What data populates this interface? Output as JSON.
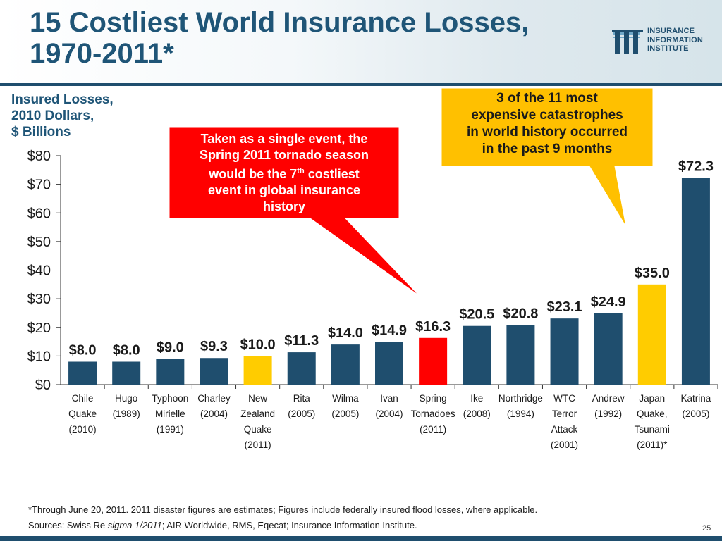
{
  "slide": {
    "title_line1": "15 Costliest World Insurance Losses,",
    "title_line2": "1970-2011*",
    "page_number": "25"
  },
  "logo": {
    "line1": "INSURANCE",
    "line2": "INFORMATION",
    "line3": "INSTITUTE"
  },
  "chart_data": {
    "type": "bar",
    "ylabel_lines": [
      "Insured Losses,",
      "2010 Dollars,",
      "$ Billions"
    ],
    "ylim": [
      0,
      80
    ],
    "yticks": [
      "$0",
      "$10",
      "$20",
      "$30",
      "$40",
      "$50",
      "$60",
      "$70",
      "$80"
    ],
    "categories": [
      [
        "Chile",
        "Quake",
        "(2010)"
      ],
      [
        "Hugo",
        "(1989)"
      ],
      [
        "Typhoon",
        "Mirielle",
        "(1991)"
      ],
      [
        "Charley",
        "(2004)"
      ],
      [
        "New",
        "Zealand",
        "Quake",
        "(2011)"
      ],
      [
        "Rita",
        "(2005)"
      ],
      [
        "Wilma",
        "(2005)"
      ],
      [
        "Ivan",
        "(2004)"
      ],
      [
        "Spring",
        "Tornadoes",
        "(2011)"
      ],
      [
        "Ike",
        "(2008)"
      ],
      [
        "Northridge",
        "(1994)"
      ],
      [
        "WTC",
        "Terror",
        "Attack",
        "(2001)"
      ],
      [
        "Andrew",
        "(1992)"
      ],
      [
        "Japan",
        "Quake,",
        "Tsunami",
        "(2011)*"
      ],
      [
        "Katrina",
        "(2005)"
      ]
    ],
    "values": [
      8.0,
      8.0,
      9.0,
      9.3,
      10.0,
      11.3,
      14.0,
      14.9,
      16.3,
      20.5,
      20.8,
      23.1,
      24.9,
      35.0,
      72.3
    ],
    "value_labels": [
      "$8.0",
      "$8.0",
      "$9.0",
      "$9.3",
      "$10.0",
      "$11.3",
      "$14.0",
      "$14.9",
      "$16.3",
      "$20.5",
      "$20.8",
      "$23.1",
      "$24.9",
      "$35.0",
      "$72.3"
    ],
    "bar_colors": [
      "#1f4e6e",
      "#1f4e6e",
      "#1f4e6e",
      "#1f4e6e",
      "#ffcc00",
      "#1f4e6e",
      "#1f4e6e",
      "#1f4e6e",
      "#ff0000",
      "#1f4e6e",
      "#1f4e6e",
      "#1f4e6e",
      "#1f4e6e",
      "#ffcc00",
      "#1f4e6e"
    ],
    "grid": false,
    "legend": "none"
  },
  "callouts": {
    "red": {
      "line1": "Taken as a single event, the",
      "line2": "Spring 2011 tornado season",
      "line3_pre": "would be the 7",
      "line3_sup": "th",
      "line3_post": " costliest",
      "line4": "event in global insurance",
      "line5": "history",
      "color": "#ff0000"
    },
    "yellow": {
      "line1": "3 of the 11 most",
      "line2": "expensive catastrophes",
      "line3": "in world history occurred",
      "line4": "in the past 9 months",
      "color": "#ffc000"
    }
  },
  "footnote": {
    "line1": "*Through June 20, 2011. 2011 disaster figures are estimates; Figures include federally insured flood losses, where applicable.",
    "line2_pre": "Sources: Swiss Re ",
    "line2_italic": "sigma 1/2011",
    "line2_post": "; AIR Worldwide, RMS, Eqecat; Insurance Information Institute."
  }
}
